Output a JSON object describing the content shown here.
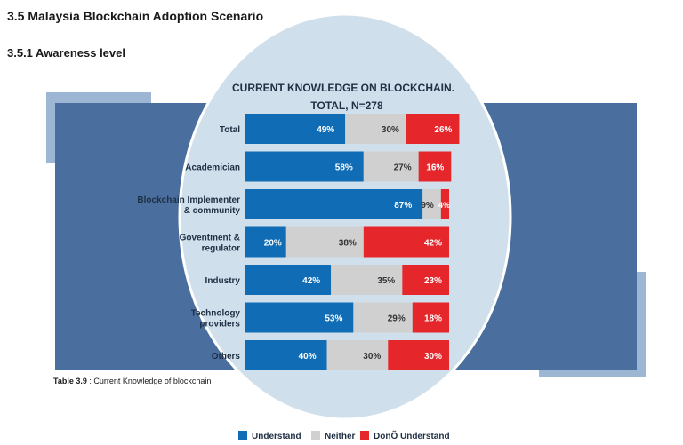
{
  "heading": "3.5 Malaysia Blockchain Adoption  Scenario",
  "subheading": "3.5.1 Awareness level",
  "caption": {
    "label": "Table 3.9",
    "text": " : Current Knowledge of blockchain"
  },
  "colors": {
    "understand": "#0f6cb5",
    "neither": "#d0d0d0",
    "dont_understand": "#e5262b",
    "panel_dark": "#4a6f9e",
    "panel_light": "#9db6d4",
    "circle": "#cfe0ec"
  },
  "chart_data": {
    "type": "bar",
    "stacked": true,
    "orientation": "horizontal",
    "title": "CURRENT KNOWLEDGE ON BLOCKCHAIN.",
    "subtitle": "TOTAL, N=278",
    "categories": [
      "Total",
      "Academician",
      "Blockchain Implementer & community",
      "Goventment & regulator",
      "Industry",
      "Technology providers",
      "Others"
    ],
    "category_lines": [
      [
        "Total"
      ],
      [
        "Academician"
      ],
      [
        "Blockchain Implementer",
        "& community"
      ],
      [
        "Goventment &",
        "regulator"
      ],
      [
        "Industry"
      ],
      [
        "Technology",
        "providers"
      ],
      [
        "Others"
      ]
    ],
    "series": [
      {
        "name": "Understand",
        "values": [
          49,
          58,
          87,
          20,
          42,
          53,
          40
        ],
        "labels": [
          "49%",
          "58%",
          "87%",
          "20%",
          "42%",
          "53%",
          "40%"
        ]
      },
      {
        "name": "Neither",
        "values": [
          30,
          27,
          9,
          38,
          35,
          29,
          30
        ],
        "labels": [
          "30%",
          "27%",
          "9%",
          "38%",
          "35%",
          "29%",
          "30%"
        ]
      },
      {
        "name": "DonÕ Understand",
        "values": [
          26,
          16,
          4,
          42,
          23,
          18,
          30
        ],
        "labels": [
          "26%",
          "16%",
          "4%",
          "42%",
          "23%",
          "18%",
          "30%"
        ]
      }
    ],
    "legend_position": "bottom",
    "grid": false
  }
}
